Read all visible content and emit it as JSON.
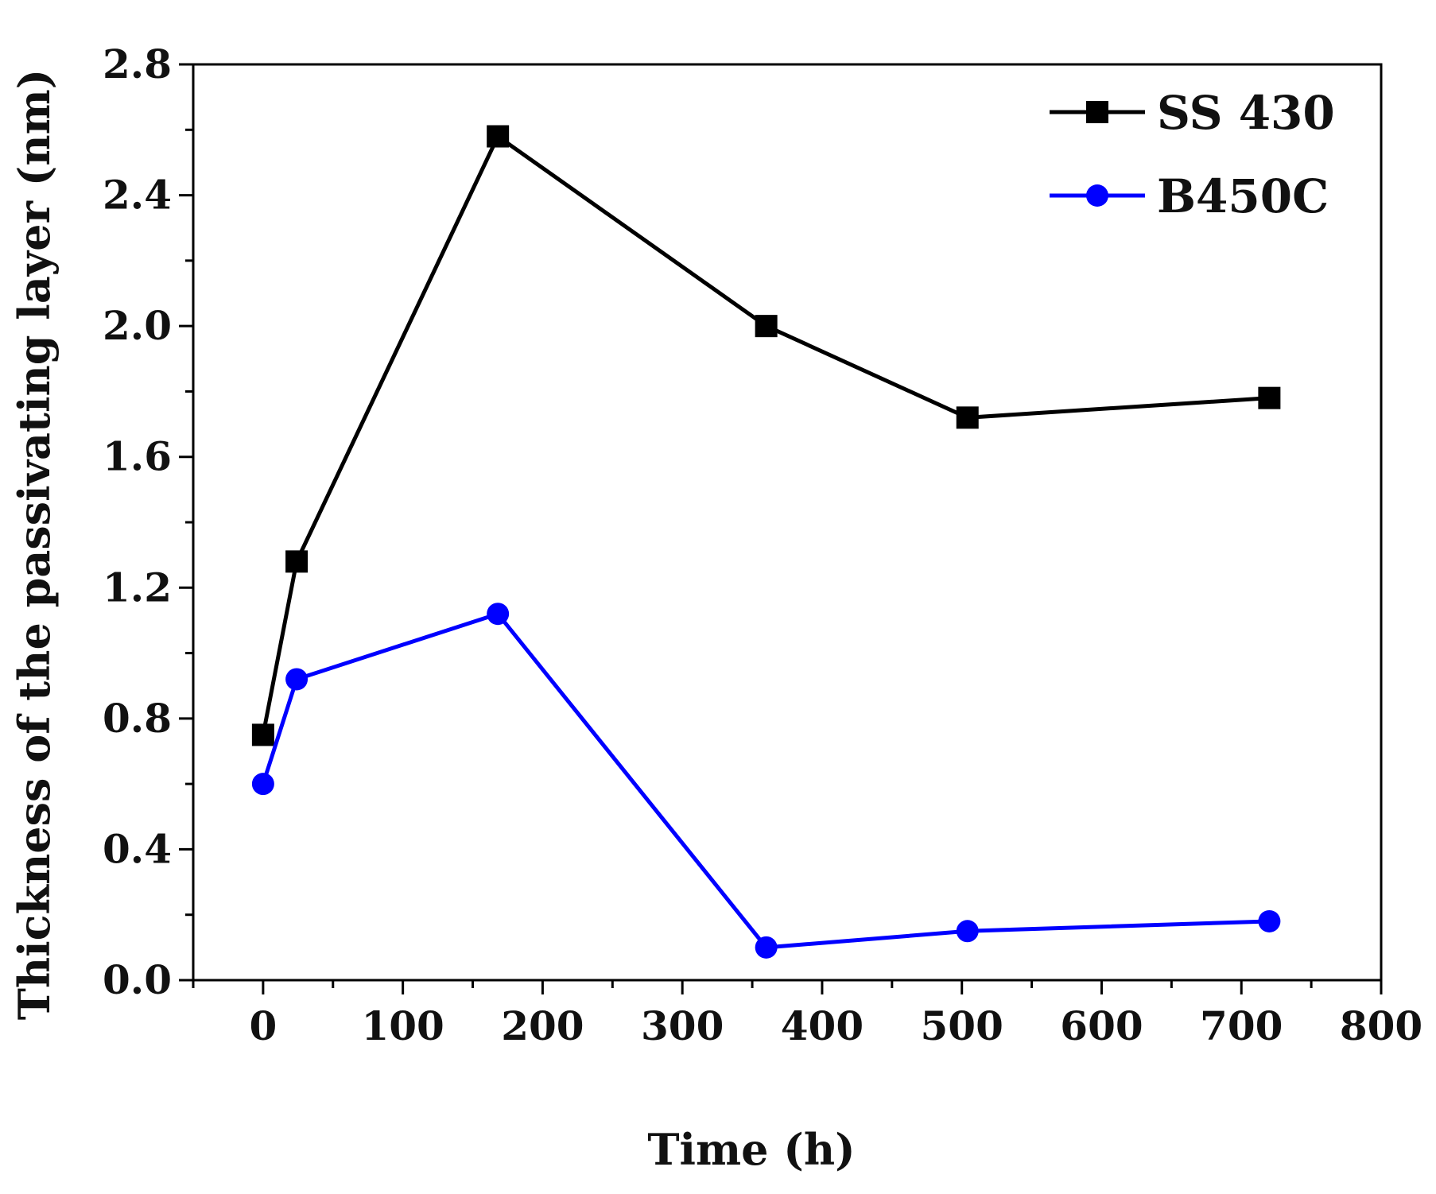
{
  "chart_data": {
    "type": "line",
    "title": "",
    "xlabel": "Time (h)",
    "ylabel": "Thickness of the passivating layer (nm)",
    "xlim": [
      -50,
      800
    ],
    "ylim": [
      0,
      2.8
    ],
    "xticks": [
      0,
      100,
      200,
      300,
      400,
      500,
      600,
      700,
      800
    ],
    "xtick_labels": [
      "0",
      "100",
      "200",
      "300",
      "400",
      "500",
      "600",
      "700",
      "800"
    ],
    "yticks": [
      0,
      0.4,
      0.8,
      1.2,
      1.6,
      2.0,
      2.4,
      2.8
    ],
    "ytick_labels": [
      "0.0",
      "0.4",
      "0.8",
      "1.2",
      "1.6",
      "2.0",
      "2.4",
      "2.8"
    ],
    "grid": false,
    "legend_position": "top-right",
    "series": [
      {
        "name": "SS 430",
        "color": "#000000",
        "marker": "square",
        "x": [
          0,
          24,
          168,
          360,
          504,
          720
        ],
        "values": [
          0.75,
          1.28,
          2.58,
          2.0,
          1.72,
          1.78
        ]
      },
      {
        "name": "B450C",
        "color": "#0000ff",
        "marker": "circle",
        "x": [
          0,
          24,
          168,
          360,
          504,
          720
        ],
        "values": [
          0.6,
          0.92,
          1.12,
          0.1,
          0.15,
          0.18
        ]
      }
    ]
  }
}
